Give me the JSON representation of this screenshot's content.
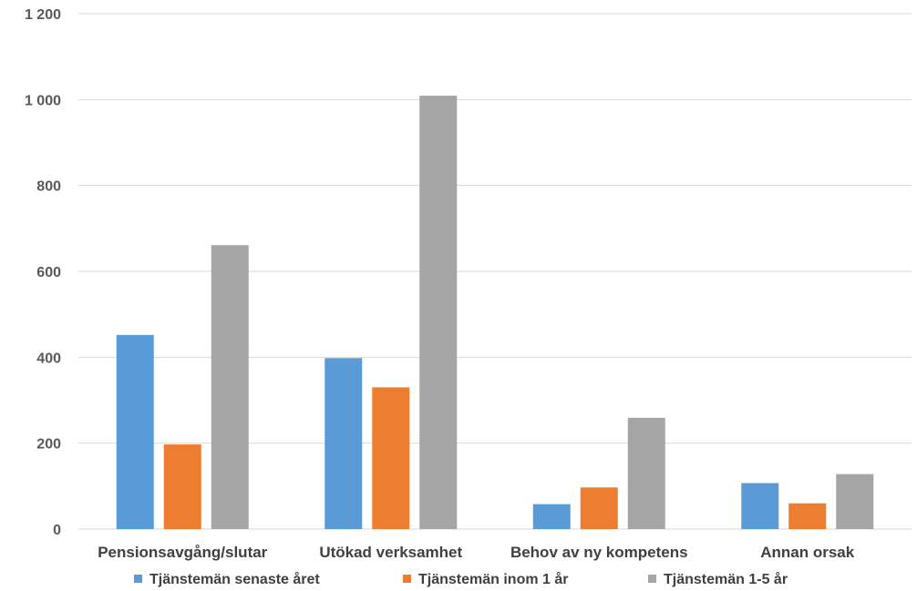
{
  "chart_data": {
    "type": "bar",
    "title": "",
    "xlabel": "",
    "ylabel": "",
    "ylim": [
      0,
      1200
    ],
    "yticks": [
      0,
      200,
      400,
      600,
      800,
      1000,
      1200
    ],
    "ytick_labels": [
      "0",
      "200",
      "400",
      "600",
      "800",
      "1 000",
      "1 200"
    ],
    "grid": true,
    "legend_position": "bottom",
    "categories": [
      "Pensionsavgång/slutar",
      "Utökad verksamhet",
      "Behov av ny kompetens",
      "Annan orsak"
    ],
    "series": [
      {
        "name": "Tjänstemän senaste året",
        "color": "#5b9bd5",
        "values": [
          452,
          398,
          58,
          107
        ]
      },
      {
        "name": "Tjänstemän inom 1 år",
        "color": "#ed7d31",
        "values": [
          197,
          330,
          97,
          60
        ]
      },
      {
        "name": "Tjänstemän 1-5 år",
        "color": "#a5a5a5",
        "values": [
          661,
          1009,
          259,
          128
        ]
      }
    ]
  }
}
